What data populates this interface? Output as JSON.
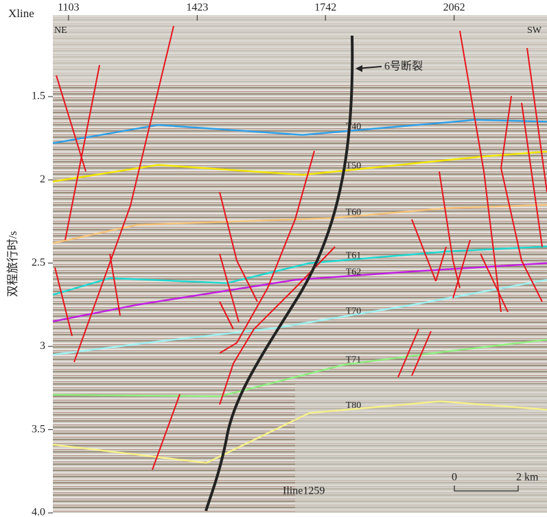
{
  "chart_data": {
    "type": "section",
    "x_label": "Xline",
    "y_label": "双程旅行时/s",
    "xlim": [
      1064,
      2293
    ],
    "xticks": [
      1103,
      1423,
      1742,
      2062
    ],
    "ylim": [
      1.0,
      4.0
    ],
    "yticks": [
      1.5,
      2.0,
      2.5,
      3.0,
      3.5,
      {
        "value": 4.0,
        "label": "4.0"
      }
    ],
    "corner_labels": [
      "NE",
      "SW"
    ],
    "fault_label": "6号断裂",
    "line_label": "Iline1259",
    "scale_labels": [
      "0",
      "2 km"
    ],
    "series": [
      {
        "name": "T40",
        "color": "#2f9fe6",
        "x": [
          1064,
          1326,
          1685,
          2113,
          2293
        ],
        "values": [
          1.78,
          1.67,
          1.73,
          1.64,
          1.65
        ]
      },
      {
        "name": "T50",
        "color": "#f2e600",
        "x": [
          1064,
          1326,
          1685,
          2130,
          2293
        ],
        "values": [
          2.01,
          1.91,
          1.97,
          1.86,
          1.83
        ]
      },
      {
        "name": "T60",
        "color": "#f5c37a",
        "x": [
          1064,
          1274,
          1754,
          2044,
          2293
        ],
        "values": [
          2.38,
          2.27,
          2.23,
          2.17,
          2.15
        ]
      },
      {
        "name": "T61",
        "color": "#20d8d0",
        "x": [
          1064,
          1206,
          1497,
          1702,
          2044,
          2293
        ],
        "values": [
          2.69,
          2.59,
          2.62,
          2.5,
          2.43,
          2.4
        ]
      },
      {
        "name": "T62",
        "color": "#c020e0",
        "x": [
          1064,
          1274,
          1668,
          1959,
          2293
        ],
        "values": [
          2.85,
          2.75,
          2.6,
          2.55,
          2.5
        ]
      },
      {
        "name": "T70",
        "color": "#9ef0f0",
        "x": [
          1064,
          1326,
          1617,
          1959,
          2293
        ],
        "values": [
          3.05,
          2.97,
          2.89,
          2.75,
          2.6
        ]
      },
      {
        "name": "T71",
        "color": "#90ee80",
        "x": [
          1064,
          1480,
          1788,
          2044,
          2293
        ],
        "values": [
          3.29,
          3.3,
          3.11,
          3.03,
          2.96
        ]
      },
      {
        "name": "T80",
        "color": "#f5f08a",
        "x": [
          1064,
          1446,
          1702,
          2027,
          2293
        ],
        "values": [
          3.59,
          3.7,
          3.4,
          3.33,
          3.38
        ]
      }
    ]
  }
}
